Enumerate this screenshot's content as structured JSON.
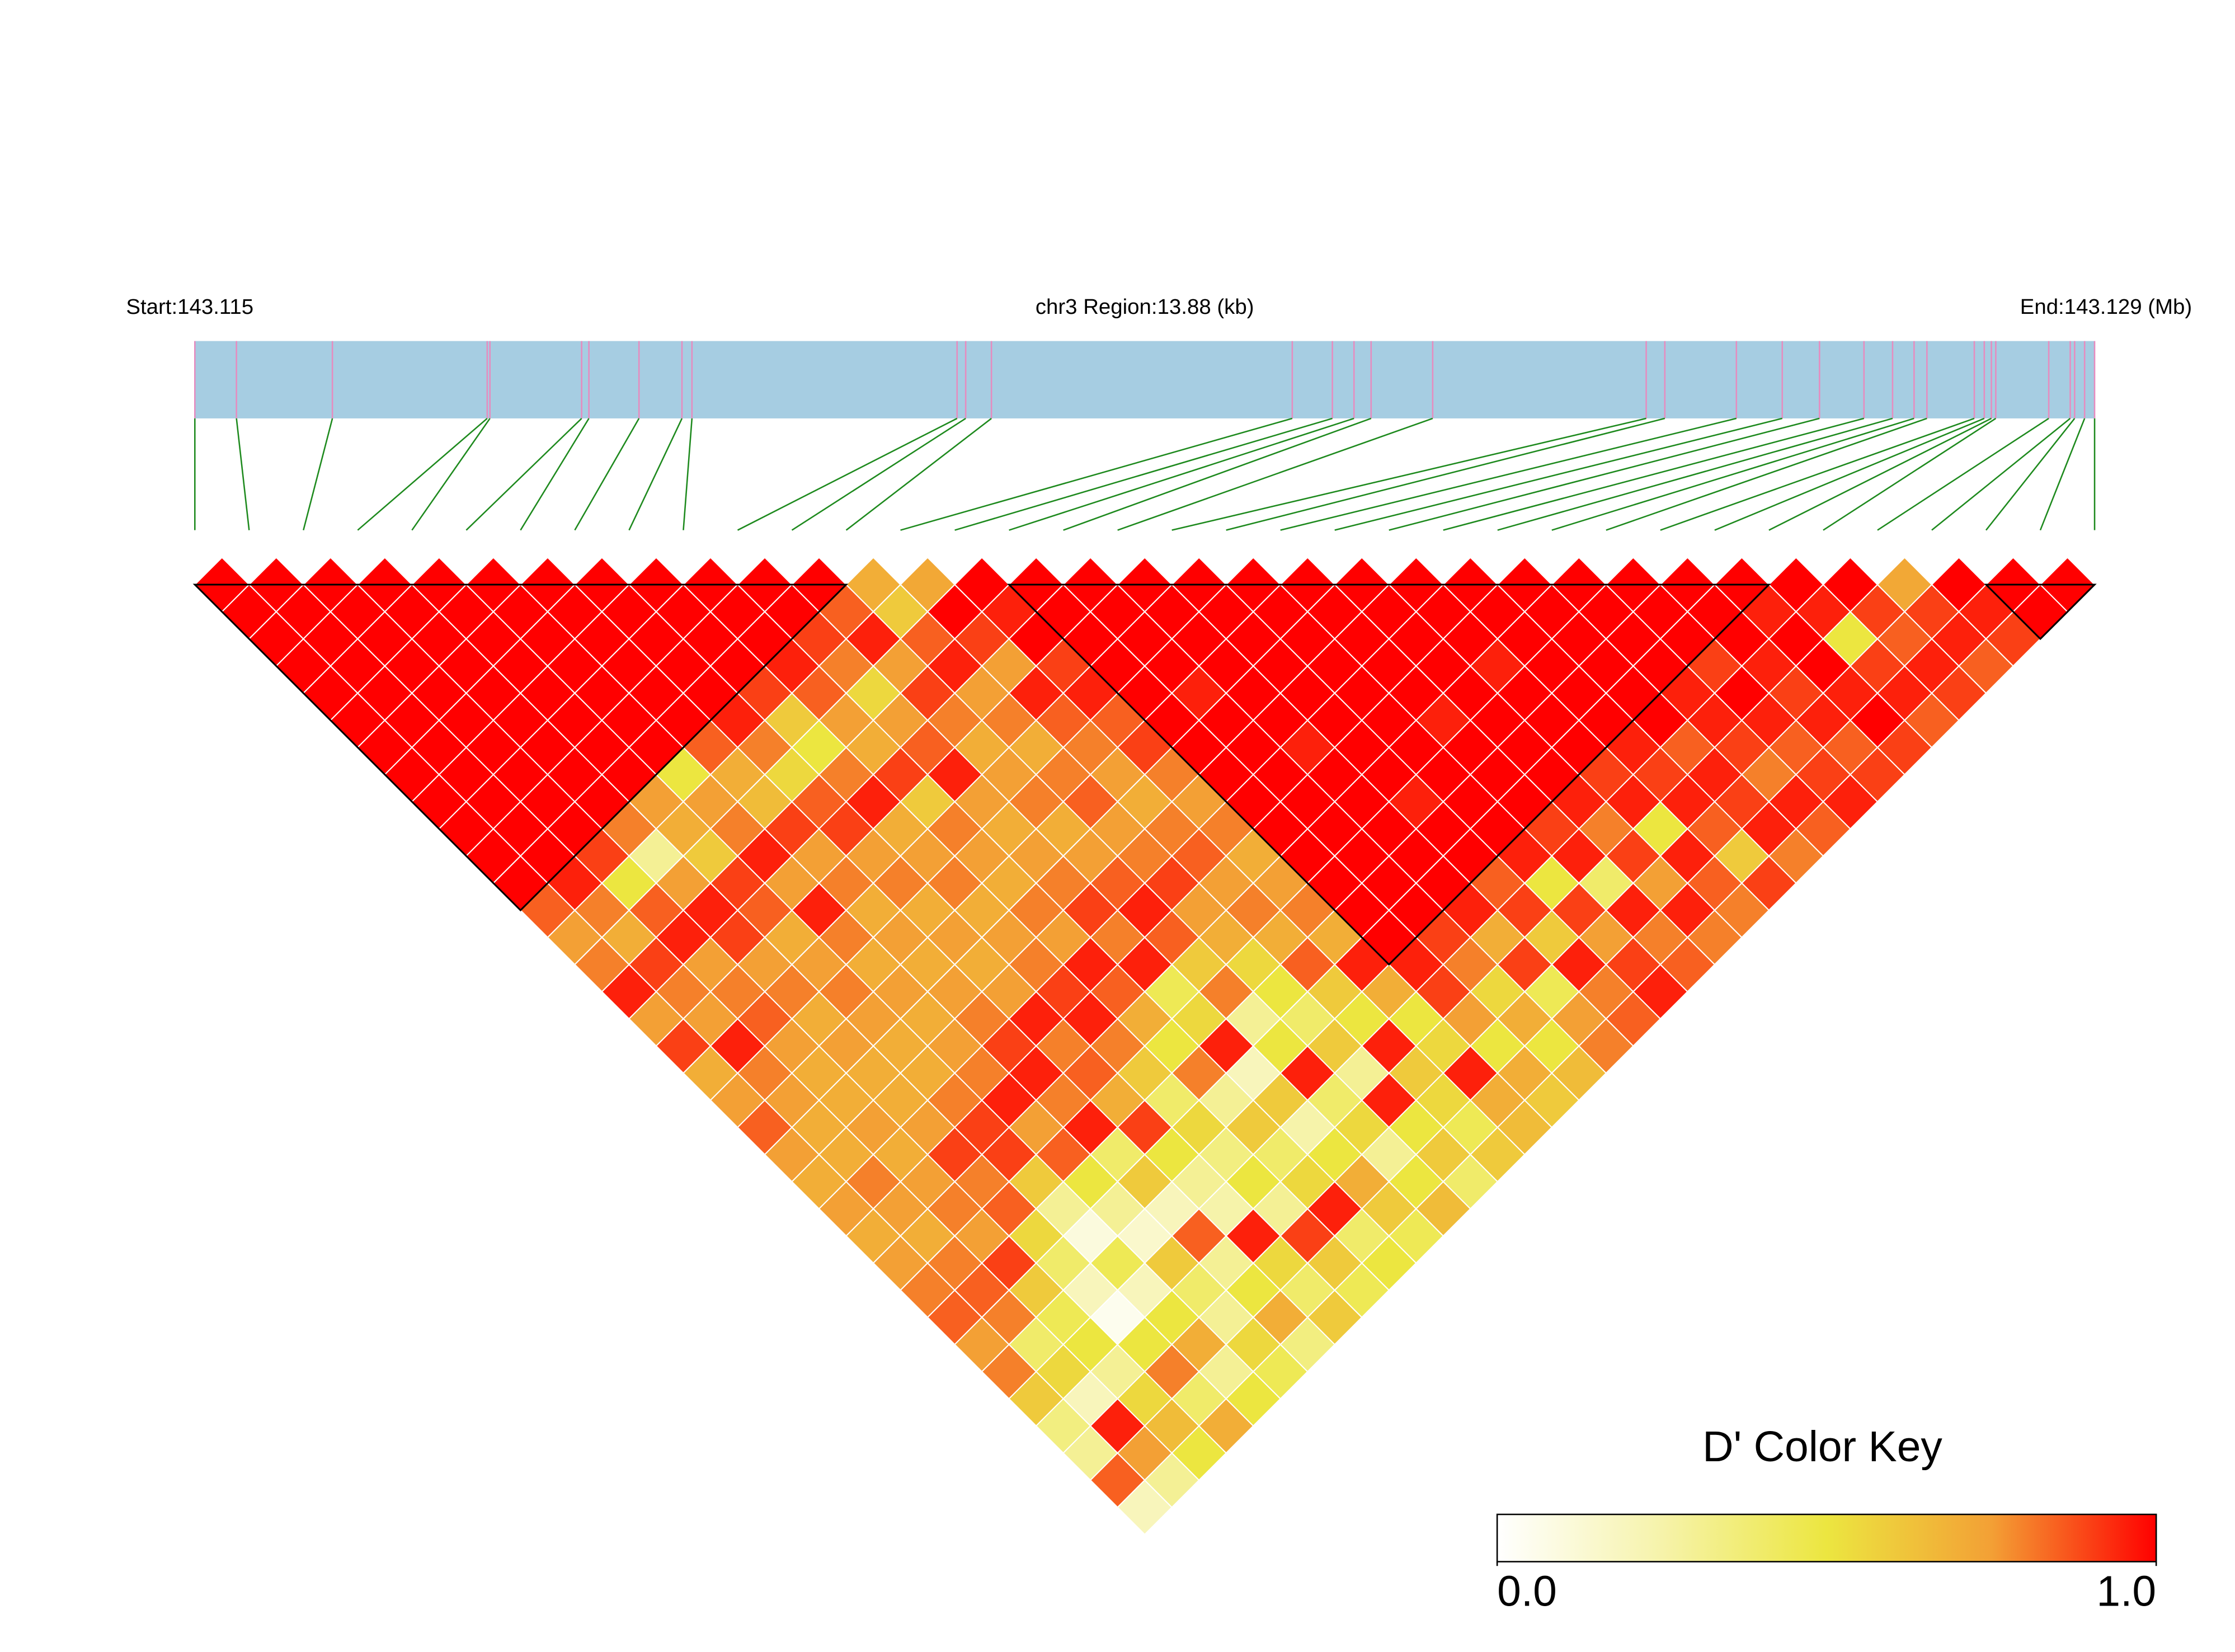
{
  "chart_data": {
    "type": "ld_heatmap",
    "start_label": "Start:143.115",
    "region_label": "chr3 Region:13.88 (kb)",
    "end_label": "End:143.129 (Mb)",
    "xlim": [
      143.115,
      143.12888
    ],
    "snp_positions": [
      143.115,
      143.115304,
      143.116005,
      143.117136,
      143.117156,
      143.117826,
      143.117879,
      143.118245,
      143.118559,
      143.118632,
      143.120569,
      143.120632,
      143.12082,
      143.123018,
      143.123311,
      143.123469,
      143.123594,
      143.124044,
      143.125604,
      143.12574,
      143.126263,
      143.126598,
      143.12687,
      143.127195,
      143.127404,
      143.127561,
      143.127655,
      143.128001,
      143.128074,
      143.128126,
      143.128158,
      143.128545,
      143.128702,
      143.128734,
      143.128807,
      143.12888
    ],
    "bar_color": "#a6cde2",
    "tick_color": "#e68cbf",
    "link_color": "#1e8a1e",
    "values": [
      [
        1,
        1,
        1,
        1,
        1,
        1,
        1,
        1,
        1,
        1,
        1,
        1,
        0.85,
        0.75,
        0.8,
        0.95,
        0.75,
        0.9,
        0.7,
        0.75,
        0.85,
        0.75,
        0.7,
        0.75,
        0.7,
        0.75,
        0.8,
        0.85,
        0.75,
        0.8,
        0.6,
        0.35,
        0.3,
        0.85,
        0.2
      ],
      [
        1,
        1,
        1,
        1,
        1,
        1,
        1,
        1,
        1,
        1,
        1,
        0.95,
        0.8,
        0.7,
        0.9,
        0.8,
        0.75,
        0.95,
        0.8,
        0.75,
        0.7,
        0.7,
        0.8,
        0.75,
        0.7,
        0.8,
        0.85,
        0.8,
        0.4,
        0.55,
        0.2,
        0.95,
        0.75,
        0.3
      ],
      [
        1,
        1,
        1,
        1,
        1,
        1,
        1,
        1,
        1,
        1,
        0.9,
        0.5,
        0.85,
        0.95,
        0.75,
        0.8,
        0.85,
        0.75,
        0.7,
        0.7,
        0.75,
        0.7,
        0.75,
        0.8,
        0.75,
        0.9,
        0.6,
        0.45,
        0.5,
        0.3,
        0.55,
        0.65,
        0.5
      ],
      [
        1,
        1,
        1,
        1,
        1,
        1,
        1,
        1,
        1,
        0.8,
        0.3,
        0.75,
        0.95,
        0.9,
        0.75,
        0.8,
        0.7,
        0.75,
        0.7,
        0.7,
        0.75,
        0.9,
        0.8,
        0.85,
        0.55,
        0.4,
        0.2,
        0.05,
        0.5,
        0.8,
        0.4,
        0.7
      ],
      [
        1,
        1,
        1,
        1,
        1,
        1,
        1,
        1,
        0.75,
        0.7,
        0.6,
        0.9,
        0.85,
        0.7,
        0.75,
        0.8,
        0.75,
        0.7,
        0.7,
        0.8,
        0.9,
        0.9,
        0.6,
        0.3,
        0.1,
        0.45,
        0.2,
        0.5,
        0.7,
        0.3,
        0.5
      ],
      [
        1,
        1,
        1,
        1,
        1,
        1,
        1,
        0.5,
        0.75,
        0.8,
        0.95,
        0.75,
        0.95,
        0.8,
        0.7,
        0.75,
        0.7,
        0.75,
        0.8,
        0.95,
        0.75,
        0.85,
        0.5,
        0.3,
        0.15,
        0.6,
        0.4,
        0.3,
        0.55,
        0.45
      ],
      [
        1,
        1,
        1,
        1,
        1,
        1,
        0.85,
        0.7,
        0.65,
        0.9,
        0.75,
        0.8,
        0.7,
        0.75,
        0.7,
        0.75,
        0.8,
        0.9,
        0.95,
        0.8,
        0.95,
        0.4,
        0.6,
        0.2,
        0.85,
        0.3,
        0.5,
        0.7,
        0.35
      ],
      [
        1,
        1,
        1,
        1,
        1,
        0.95,
        0.8,
        0.55,
        0.85,
        0.9,
        0.75,
        0.8,
        0.7,
        0.75,
        0.7,
        0.75,
        0.95,
        0.8,
        0.85,
        0.7,
        0.9,
        0.5,
        0.3,
        0.25,
        0.95,
        0.55,
        0.4,
        0.6
      ],
      [
        1,
        1,
        1,
        1,
        0.9,
        0.6,
        0.5,
        0.8,
        0.95,
        0.7,
        0.75,
        0.8,
        0.7,
        0.75,
        0.8,
        0.9,
        0.95,
        0.8,
        0.6,
        0.4,
        0.55,
        0.35,
        0.5,
        0.3,
        0.9,
        0.6,
        0.45
      ],
      [
        1,
        1,
        1,
        0.95,
        0.85,
        0.75,
        0.7,
        0.9,
        0.6,
        0.8,
        0.75,
        0.7,
        0.8,
        0.75,
        0.95,
        0.85,
        0.7,
        0.5,
        0.8,
        0.3,
        0.6,
        0.4,
        0.55,
        0.95,
        0.4,
        0.5
      ],
      [
        1,
        1,
        0.9,
        0.8,
        0.55,
        0.75,
        0.85,
        0.95,
        0.75,
        0.7,
        0.75,
        0.8,
        0.9,
        0.8,
        0.95,
        0.45,
        0.55,
        0.95,
        0.2,
        0.6,
        0.25,
        0.5,
        0.7,
        0.6,
        0.45
      ],
      [
        1,
        0.85,
        0.95,
        0.75,
        0.9,
        0.8,
        0.7,
        0.75,
        0.8,
        0.7,
        0.75,
        0.85,
        0.95,
        0.85,
        0.6,
        0.8,
        0.3,
        0.5,
        0.95,
        0.4,
        0.55,
        0.3,
        0.5,
        0.65
      ],
      [
        0.7,
        0.6,
        0.85,
        0.95,
        0.75,
        0.8,
        0.7,
        0.8,
        0.85,
        0.75,
        0.8,
        0.9,
        0.75,
        0.7,
        0.55,
        0.5,
        0.4,
        0.6,
        0.3,
        0.95,
        0.5,
        0.6,
        0.4
      ],
      [
        0.72,
        1,
        0.9,
        0.75,
        0.95,
        0.85,
        0.8,
        0.75,
        0.7,
        0.8,
        0.85,
        0.75,
        0.8,
        0.7,
        0.85,
        0.6,
        0.5,
        0.95,
        0.6,
        0.55,
        0.45,
        0.6
      ],
      [
        1,
        0.95,
        1,
        0.9,
        0.95,
        0.85,
        0.9,
        0.8,
        0.75,
        0.8,
        0.7,
        0.75,
        0.8,
        0.7,
        0.95,
        0.7,
        0.5,
        0.55,
        0.95,
        0.7,
        0.65
      ],
      [
        1,
        1,
        1,
        1,
        1,
        1,
        1,
        1,
        1,
        1,
        1,
        1,
        1,
        1,
        0.95,
        0.9,
        0.75,
        0.5,
        0.7,
        0.6
      ],
      [
        1,
        1,
        1,
        1,
        0.95,
        1,
        1,
        1,
        1,
        1,
        1,
        1,
        1,
        0.9,
        0.8,
        0.55,
        0.7,
        0.5,
        0.65
      ],
      [
        1,
        1,
        1,
        1,
        1,
        1,
        0.95,
        1,
        1,
        1,
        1,
        1,
        0.95,
        0.7,
        0.9,
        0.45,
        0.75,
        0.8
      ],
      [
        1,
        1,
        1,
        1,
        1,
        1,
        1,
        1,
        0.95,
        1,
        1,
        0.85,
        0.9,
        0.6,
        0.95,
        0.8,
        0.85
      ],
      [
        1,
        1,
        1,
        1,
        1,
        1,
        1,
        1,
        1,
        1,
        0.95,
        0.5,
        0.9,
        0.75,
        0.9,
        0.95
      ],
      [
        1,
        1,
        1,
        1,
        1,
        0.95,
        1,
        1,
        1,
        0.9,
        0.95,
        0.4,
        0.95,
        0.8,
        0.85
      ],
      [
        1,
        1,
        1,
        1,
        1,
        1,
        1,
        1,
        0.95,
        0.8,
        0.9,
        0.75,
        0.95,
        0.8
      ],
      [
        1,
        1,
        1,
        0.95,
        1,
        1,
        1,
        0.9,
        0.95,
        0.5,
        0.95,
        0.85,
        0.8
      ],
      [
        1,
        1,
        1,
        1,
        1,
        1,
        0.95,
        0.9,
        0.95,
        0.85,
        0.6,
        0.9
      ],
      [
        1,
        1,
        1,
        1,
        1,
        1,
        0.85,
        0.95,
        0.9,
        0.95,
        0.8
      ],
      [
        1,
        1,
        1,
        1,
        0.95,
        0.95,
        0.9,
        0.8,
        0.95,
        0.85
      ],
      [
        1,
        1,
        1,
        0.9,
        1,
        0.95,
        0.85,
        0.9,
        0.95
      ],
      [
        1,
        1,
        1,
        0.95,
        0.9,
        0.95,
        0.85,
        0.9
      ],
      [
        1,
        0.95,
        1,
        1,
        0.95,
        1,
        0.9
      ],
      [
        1,
        0.95,
        0.5,
        0.9,
        0.95,
        0.85
      ],
      [
        1,
        0.9,
        0.85,
        0.95,
        0.9
      ],
      [
        0.72,
        0.9,
        0.95,
        0.85
      ],
      [
        1,
        0.95,
        0.9
      ],
      [
        1,
        1
      ],
      [
        1
      ]
    ],
    "blocks": [
      [
        0,
        12
      ],
      [
        15,
        29
      ],
      [
        33,
        35
      ]
    ],
    "color_key": {
      "title": "D' Color Key",
      "lim": [
        0,
        1
      ],
      "ticks": [
        {
          "value": 0,
          "label": "0.0"
        },
        {
          "value": 1,
          "label": "1.0"
        }
      ],
      "colors": [
        "#ffffff",
        "#f6f3aa",
        "#ece640",
        "#f3a035",
        "#ff0000"
      ]
    }
  }
}
